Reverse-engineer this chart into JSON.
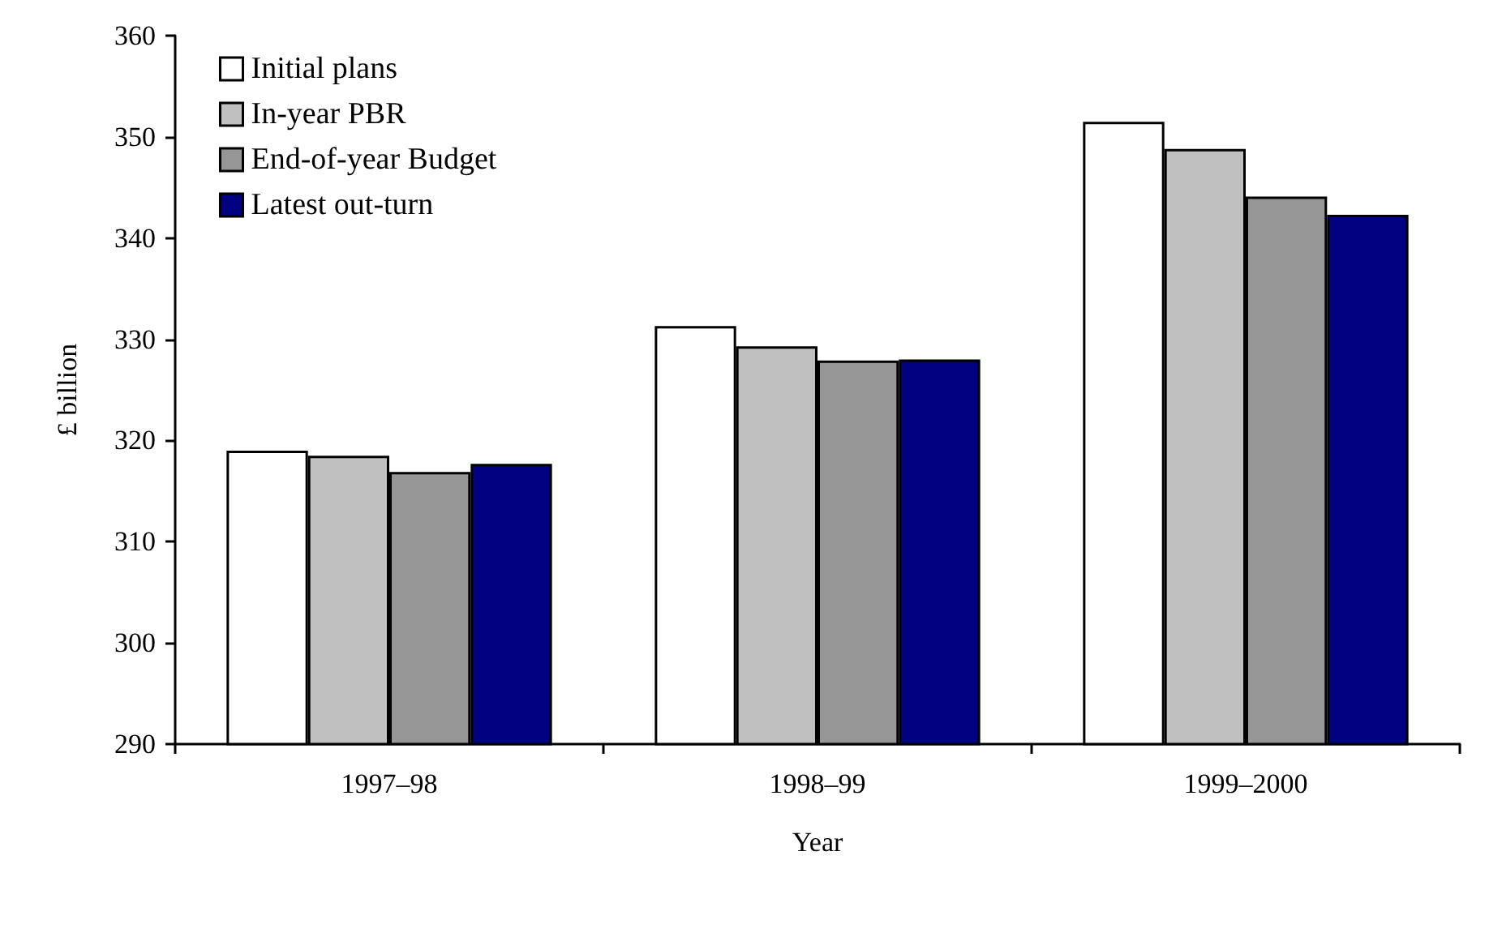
{
  "chart_data": {
    "type": "bar",
    "xlabel": "Year",
    "ylabel": "£ billion",
    "categories": [
      "1997–98",
      "1998–99",
      "1999–2000"
    ],
    "series": [
      {
        "name": "Initial plans",
        "color": "#ffffff",
        "values": [
          319.0,
          331.3,
          351.5
        ]
      },
      {
        "name": "In-year PBR",
        "color": "#c0c0c0",
        "values": [
          318.5,
          329.3,
          348.8
        ]
      },
      {
        "name": "End-of-year Budget",
        "color": "#969696",
        "values": [
          316.9,
          327.9,
          344.1
        ]
      },
      {
        "name": "Latest out-turn",
        "color": "#000080",
        "values": [
          317.7,
          328.0,
          342.3
        ]
      }
    ],
    "ylim": [
      290,
      360
    ],
    "yticks": [
      290,
      300,
      310,
      320,
      330,
      340,
      350,
      360
    ],
    "grid": false,
    "legend": "top left"
  }
}
